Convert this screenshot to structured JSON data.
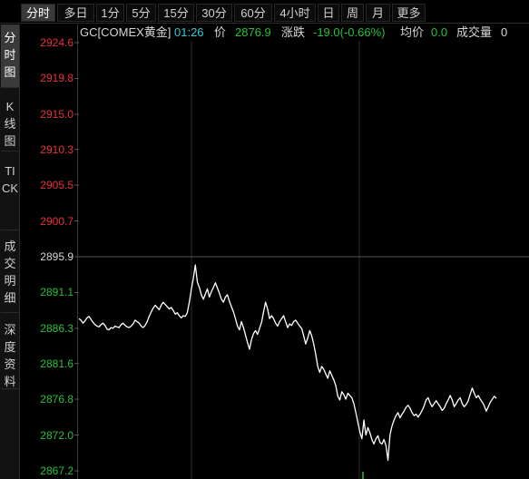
{
  "tabs": [
    {
      "label": "分时",
      "active": true
    },
    {
      "label": "多日"
    },
    {
      "label": "1分"
    },
    {
      "label": "5分"
    },
    {
      "label": "15分"
    },
    {
      "label": "30分"
    },
    {
      "label": "60分"
    },
    {
      "label": "4小时"
    },
    {
      "label": "日"
    },
    {
      "label": "周"
    },
    {
      "label": "月"
    },
    {
      "label": "更多"
    }
  ],
  "side_tabs": [
    {
      "label": "分时图",
      "active": true
    },
    {
      "label": "K线图"
    },
    {
      "label": "TICK"
    },
    {
      "label": "成交明细"
    },
    {
      "label": "深度资料"
    }
  ],
  "info": {
    "symbol": "GC[COMEX黄金]",
    "time": "01:26",
    "price_label": "价",
    "price": "2876.9",
    "change_label": "涨跌",
    "change": "-19.0(-0.66%)",
    "avg_label": "均价",
    "avg": "0.0",
    "volume_label": "成交量",
    "volume": "0"
  },
  "colors": {
    "up": "#e8313b",
    "down": "#27c03b",
    "neutral": "#d6d6d6",
    "cyan": "#33c9d6",
    "line": "#ffffff",
    "grid": "#2c2c2c"
  },
  "chart_data": {
    "type": "line",
    "title": "",
    "xlabel": "",
    "ylabel": "",
    "prev_close": 2895.9,
    "ylim": [
      2867.2,
      2924.6
    ],
    "yticks": [
      2924.6,
      2919.8,
      2915.0,
      2910.3,
      2905.5,
      2900.7,
      2895.9,
      2891.1,
      2886.3,
      2881.6,
      2876.8,
      2872.0,
      2867.2
    ],
    "ytick_labels": [
      "2924.6",
      "2919.8",
      "2915.0",
      "2910.3",
      "2905.5",
      "2900.7",
      "2895.9",
      "2891.1",
      "2886.3",
      "2881.6",
      "2876.8",
      "2872.0",
      "2867.2"
    ],
    "grid": true,
    "series": [
      {
        "values": [
          2887.6,
          2887.4,
          2887.0,
          2887.3,
          2887.7,
          2887.9,
          2887.5,
          2887.1,
          2886.8,
          2886.6,
          2886.5,
          2886.8,
          2887.0,
          2886.7,
          2886.2,
          2886.1,
          2886.4,
          2886.3,
          2886.6,
          2886.5,
          2886.4,
          2886.8,
          2887.0,
          2886.7,
          2886.5,
          2886.4,
          2886.6,
          2886.9,
          2887.4,
          2887.2,
          2887.0,
          2886.6,
          2886.4,
          2886.7,
          2887.2,
          2887.9,
          2888.5,
          2889.0,
          2889.4,
          2889.1,
          2888.8,
          2889.4,
          2889.8,
          2889.5,
          2889.2,
          2888.9,
          2889.1,
          2888.7,
          2888.2,
          2888.4,
          2888.0,
          2887.7,
          2888.0,
          2887.9,
          2888.4,
          2889.8,
          2891.5,
          2893.0,
          2894.8,
          2892.5,
          2891.8,
          2890.8,
          2890.2,
          2890.9,
          2891.6,
          2890.5,
          2891.2,
          2891.8,
          2892.4,
          2891.7,
          2891.0,
          2890.2,
          2889.8,
          2890.5,
          2890.8,
          2889.9,
          2889.2,
          2888.5,
          2887.6,
          2886.6,
          2886.1,
          2887.2,
          2886.4,
          2885.4,
          2884.4,
          2883.5,
          2884.8,
          2885.6,
          2886.0,
          2885.5,
          2886.3,
          2887.1,
          2888.5,
          2889.8,
          2888.9,
          2887.6,
          2888.0,
          2887.6,
          2887.0,
          2886.6,
          2887.2,
          2887.6,
          2888.0,
          2887.2,
          2886.4,
          2886.9,
          2886.7,
          2887.2,
          2887.4,
          2887.0,
          2886.6,
          2886.3,
          2885.3,
          2884.2,
          2885.0,
          2886.0,
          2885.3,
          2884.2,
          2882.8,
          2881.2,
          2880.4,
          2881.2,
          2880.8,
          2880.2,
          2879.6,
          2880.6,
          2880.0,
          2879.4,
          2878.6,
          2877.2,
          2876.7,
          2877.8,
          2877.4,
          2876.8,
          2877.6,
          2877.3,
          2877.0,
          2876.2,
          2875.0,
          2873.7,
          2872.4,
          2871.5,
          2874.0,
          2872.0,
          2873.0,
          2872.3,
          2871.4,
          2870.8,
          2871.5,
          2871.9,
          2871.0,
          2870.8,
          2871.4,
          2870.6,
          2868.6,
          2872.0,
          2873.2,
          2874.0,
          2874.6,
          2875.0,
          2874.3,
          2874.8,
          2875.2,
          2875.7,
          2876.0,
          2875.6,
          2875.0,
          2874.6,
          2874.8,
          2874.4,
          2874.8,
          2875.3,
          2875.9,
          2876.7,
          2877.0,
          2876.3,
          2875.8,
          2876.2,
          2876.6,
          2876.2,
          2875.8,
          2875.3,
          2875.6,
          2876.2,
          2876.7,
          2877.3,
          2876.7,
          2875.8,
          2876.2,
          2876.7,
          2877.0,
          2876.2,
          2875.8,
          2876.1,
          2876.6,
          2877.5,
          2878.3,
          2877.6,
          2877.0,
          2877.3,
          2876.8,
          2876.4,
          2875.9,
          2875.2,
          2875.8,
          2876.4,
          2876.8,
          2877.2,
          2876.9
        ]
      }
    ]
  }
}
